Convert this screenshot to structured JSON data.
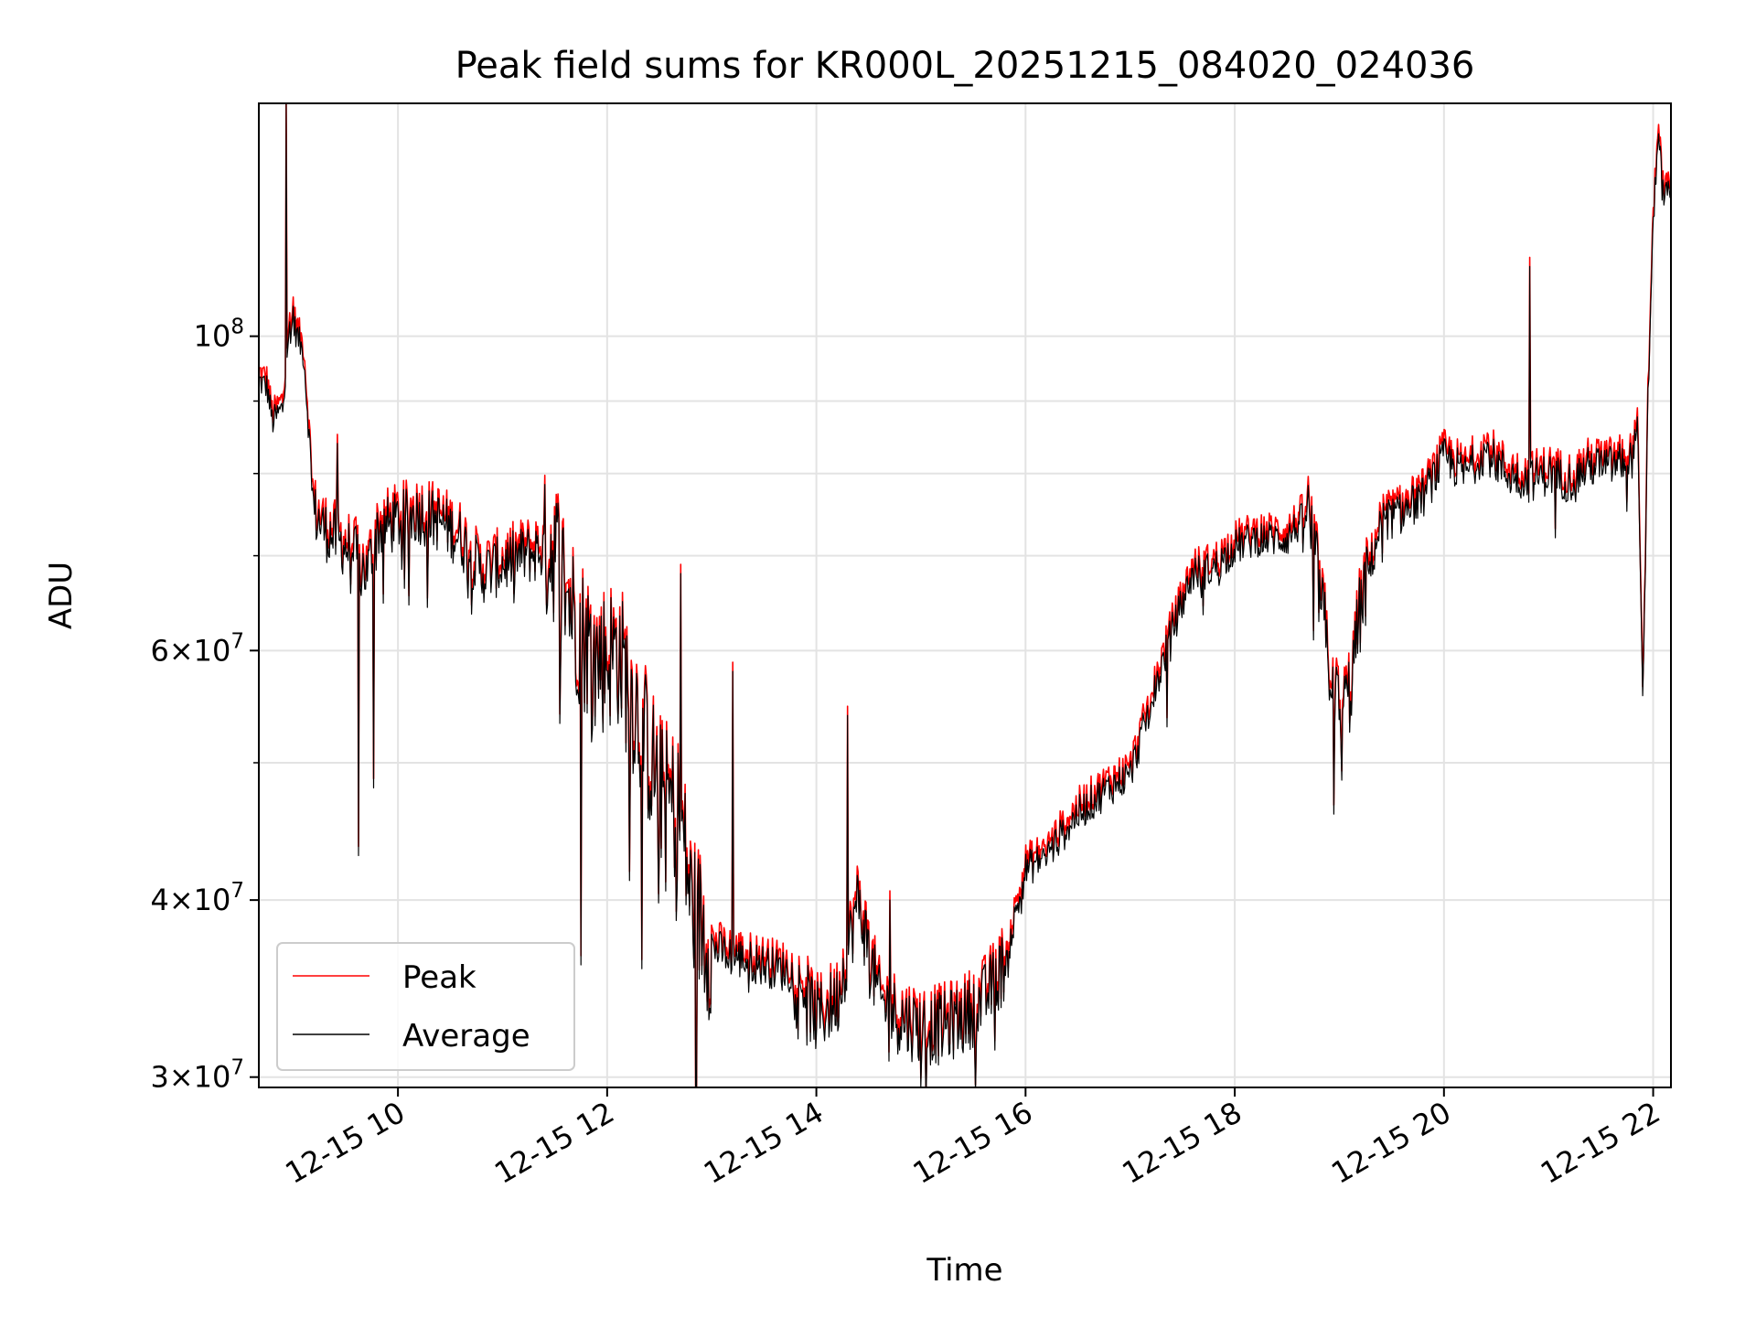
{
  "chart_data": {
    "type": "line",
    "title": "Peak field sums for KR000L_20251215_084020_024036",
    "xlabel": "Time",
    "ylabel": "ADU",
    "yscale": "log",
    "xlim_hours": [
      8.67,
      22.17
    ],
    "ylim": [
      29500000,
      146000000
    ],
    "x_ticks": [
      {
        "value": 10,
        "label": "12-15 10"
      },
      {
        "value": 12,
        "label": "12-15 12"
      },
      {
        "value": 14,
        "label": "12-15 14"
      },
      {
        "value": 16,
        "label": "12-15 16"
      },
      {
        "value": 18,
        "label": "12-15 18"
      },
      {
        "value": 20,
        "label": "12-15 20"
      },
      {
        "value": 22,
        "label": "12-15 22"
      }
    ],
    "y_major_ticks": [
      {
        "value": 30000000,
        "mantissa": "3",
        "base": "10",
        "exp": "7"
      },
      {
        "value": 40000000,
        "mantissa": "4",
        "base": "10",
        "exp": "7"
      },
      {
        "value": 60000000,
        "mantissa": "6",
        "base": "10",
        "exp": "7"
      },
      {
        "value": 100000000,
        "mantissa": "",
        "base": "10",
        "exp": "8"
      }
    ],
    "y_minor_ticks": [
      50000000,
      70000000,
      80000000,
      90000000
    ],
    "grid": true,
    "legend_position": "lower-left",
    "series": [
      {
        "name": "Peak",
        "color": "#ff0000",
        "offset_factor": 1.015
      },
      {
        "name": "Average",
        "color": "#000000",
        "offset_factor": 1.0
      }
    ],
    "baseline_hours": [
      8.67,
      8.75,
      8.8,
      8.9,
      8.95,
      9.0,
      9.1,
      9.2,
      9.3,
      9.4,
      9.5,
      9.6,
      9.7,
      9.8,
      10.0,
      10.2,
      10.4,
      10.6,
      10.8,
      11.0,
      11.2,
      11.5,
      11.7,
      11.9,
      12.1,
      12.3,
      12.5,
      12.7,
      12.8,
      13.0,
      13.2,
      13.5,
      13.8,
      14.0,
      14.2,
      14.4,
      14.6,
      14.8,
      15.0,
      15.2,
      15.4,
      15.6,
      15.8,
      16.0,
      16.2,
      16.5,
      16.8,
      17.0,
      17.2,
      17.4,
      17.6,
      17.8,
      18.0,
      18.2,
      18.5,
      18.7,
      18.8,
      18.9,
      19.0,
      19.1,
      19.2,
      19.4,
      19.6,
      19.8,
      20.0,
      20.2,
      20.4,
      20.6,
      20.8,
      21.0,
      21.2,
      21.4,
      21.6,
      21.8,
      21.85,
      21.9,
      21.95,
      22.0,
      22.05,
      22.1,
      22.17
    ],
    "baseline_values": [
      93000000,
      92000000,
      87000000,
      89000000,
      100000000,
      102000000,
      97000000,
      75000000,
      73000000,
      72000000,
      71000000,
      70000000,
      68000000,
      73000000,
      74000000,
      75000000,
      74000000,
      72000000,
      68000000,
      69000000,
      70000000,
      71000000,
      63000000,
      59000000,
      60000000,
      54000000,
      48000000,
      46000000,
      40000000,
      37000000,
      36500000,
      36000000,
      35500000,
      33000000,
      34000000,
      40000000,
      34000000,
      33000000,
      32500000,
      32500000,
      33000000,
      34000000,
      36000000,
      42000000,
      43000000,
      46000000,
      48000000,
      49000000,
      55000000,
      62000000,
      68000000,
      68500000,
      71000000,
      72000000,
      72000000,
      75000000,
      67000000,
      59000000,
      54000000,
      56000000,
      64000000,
      74000000,
      75000000,
      77000000,
      82000000,
      80000000,
      83000000,
      80000000,
      79000000,
      80000000,
      79000000,
      81000000,
      81000000,
      82000000,
      87000000,
      55000000,
      90000000,
      120000000,
      140000000,
      125000000,
      128000000
    ],
    "spikes": [
      {
        "hour": 8.93,
        "value": 146000000
      },
      {
        "hour": 9.0,
        "value": 105000000
      },
      {
        "hour": 9.42,
        "value": 84000000
      },
      {
        "hour": 9.62,
        "value": 43000000
      },
      {
        "hour": 9.77,
        "value": 48000000
      },
      {
        "hour": 11.75,
        "value": 36000000
      },
      {
        "hour": 12.7,
        "value": 68000000
      },
      {
        "hour": 13.2,
        "value": 58000000
      },
      {
        "hour": 14.3,
        "value": 54000000
      },
      {
        "hour": 14.7,
        "value": 40000000
      },
      {
        "hour": 15.0,
        "value": 29500000
      },
      {
        "hour": 17.35,
        "value": 53000000
      },
      {
        "hour": 18.95,
        "value": 46000000
      },
      {
        "hour": 20.82,
        "value": 112000000
      }
    ]
  }
}
